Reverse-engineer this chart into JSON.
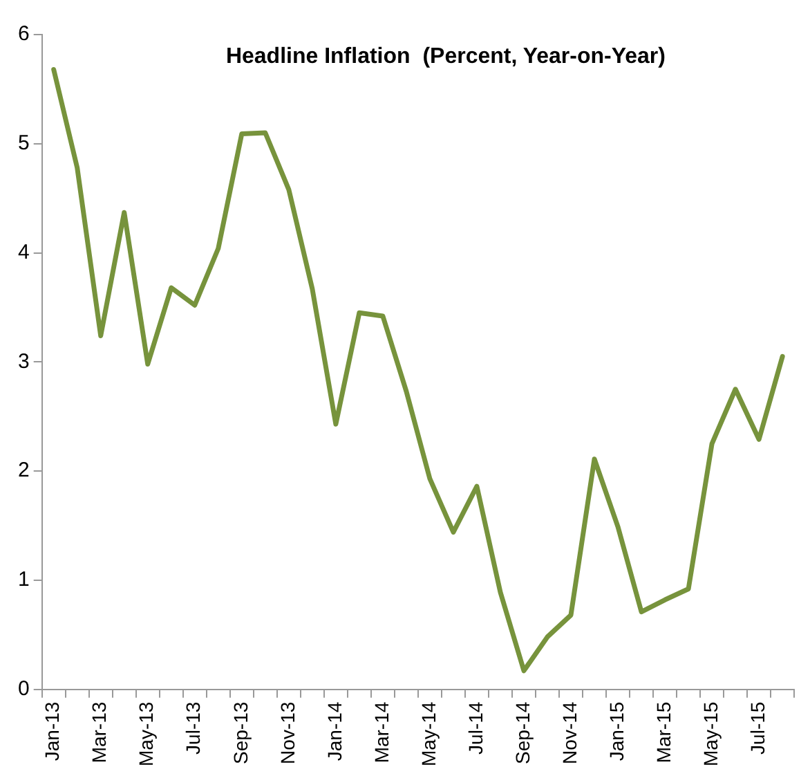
{
  "chart_data": {
    "type": "line",
    "title": "Headline Inflation  (Percent, Year-on-Year)",
    "categories": [
      "Jan-13",
      null,
      "Mar-13",
      null,
      "May-13",
      null,
      "Jul-13",
      null,
      "Sep-13",
      null,
      "Nov-13",
      null,
      "Jan-14",
      null,
      "Mar-14",
      null,
      "May-14",
      null,
      "Jul-14",
      null,
      "Sep-14",
      null,
      "Nov-14",
      null,
      "Jan-15",
      null,
      "Mar-15",
      null,
      "May-15",
      null,
      "Jul-15",
      null
    ],
    "series": [
      {
        "color": "#77933c",
        "values": [
          5.68,
          4.78,
          3.24,
          4.37,
          2.98,
          3.68,
          3.52,
          4.04,
          5.09,
          5.1,
          4.58,
          3.67,
          2.43,
          3.45,
          3.42,
          2.73,
          1.93,
          1.44,
          1.86,
          0.89,
          0.17,
          0.48,
          0.68,
          2.11,
          1.49,
          0.71,
          0.82,
          0.92,
          2.25,
          2.75,
          2.29,
          3.05
        ]
      }
    ],
    "ylim": [
      0,
      6
    ],
    "yticks": [
      0,
      1,
      2,
      3,
      4,
      5,
      6
    ],
    "grid": false,
    "legend": false,
    "marker": "none",
    "line_style": "solid"
  }
}
